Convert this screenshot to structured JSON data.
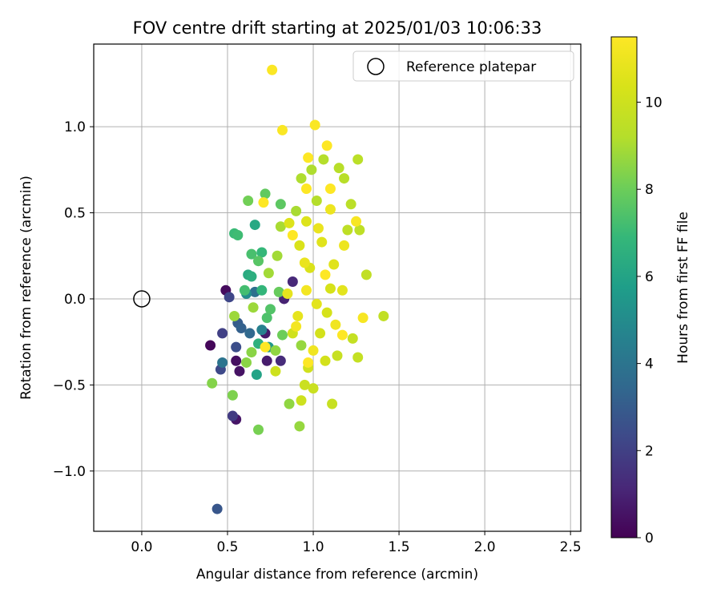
{
  "chart_data": {
    "type": "scatter",
    "title": "FOV centre drift starting at 2025/01/03 10:06:33",
    "xlabel": "Angular distance from reference (arcmin)",
    "ylabel": "Rotation from reference (arcmin)",
    "xlim": [
      -0.28,
      2.56
    ],
    "ylim": [
      -1.35,
      1.48
    ],
    "xticks": [
      0.0,
      0.5,
      1.0,
      1.5,
      2.0,
      2.5
    ],
    "xtick_labels": [
      "0.0",
      "0.5",
      "1.0",
      "1.5",
      "2.0",
      "2.5"
    ],
    "yticks": [
      -1.0,
      -0.5,
      0.0,
      0.5,
      1.0
    ],
    "ytick_labels": [
      "−1.0",
      "−0.5",
      "0.0",
      "0.5",
      "1.0"
    ],
    "grid": true,
    "legend": {
      "position": "top-right",
      "entries": [
        "Reference platepar"
      ]
    },
    "reference_point": {
      "x": 0.0,
      "y": 0.0
    },
    "colorbar": {
      "label": "Hours from first FF file",
      "range": [
        0,
        11.5
      ],
      "ticks": [
        0,
        2,
        4,
        6,
        8,
        10
      ],
      "tick_labels": [
        "0",
        "2",
        "4",
        "6",
        "8",
        "10"
      ],
      "colormap": "viridis"
    },
    "series": [
      {
        "points": [
          {
            "x": 0.4,
            "y": -0.27,
            "h": 0.2
          },
          {
            "x": 0.49,
            "y": 0.05,
            "h": 0.3
          },
          {
            "x": 0.55,
            "y": -0.36,
            "h": 0.4
          },
          {
            "x": 0.57,
            "y": -0.42,
            "h": 0.5
          },
          {
            "x": 0.55,
            "y": -0.7,
            "h": 0.6
          },
          {
            "x": 0.72,
            "y": -0.2,
            "h": 0.7
          },
          {
            "x": 0.73,
            "y": -0.36,
            "h": 0.8
          },
          {
            "x": 0.83,
            "y": 0.0,
            "h": 1.0
          },
          {
            "x": 0.88,
            "y": 0.1,
            "h": 1.2
          },
          {
            "x": 0.81,
            "y": -0.36,
            "h": 1.3
          },
          {
            "x": 0.53,
            "y": -0.68,
            "h": 1.8
          },
          {
            "x": 0.47,
            "y": -0.2,
            "h": 2.0
          },
          {
            "x": 0.51,
            "y": 0.01,
            "h": 2.2
          },
          {
            "x": 0.46,
            "y": -0.41,
            "h": 2.3
          },
          {
            "x": 0.55,
            "y": -0.28,
            "h": 2.5
          },
          {
            "x": 0.44,
            "y": -1.22,
            "h": 2.8
          },
          {
            "x": 0.56,
            "y": -0.14,
            "h": 3.0
          },
          {
            "x": 0.58,
            "y": -0.17,
            "h": 3.2
          },
          {
            "x": 0.63,
            "y": -0.2,
            "h": 3.5
          },
          {
            "x": 0.66,
            "y": 0.04,
            "h": 3.8
          },
          {
            "x": 0.47,
            "y": -0.37,
            "h": 4.0
          },
          {
            "x": 0.7,
            "y": -0.18,
            "h": 4.5
          },
          {
            "x": 0.61,
            "y": 0.03,
            "h": 5.0
          },
          {
            "x": 0.74,
            "y": -0.28,
            "h": 5.5
          },
          {
            "x": 0.67,
            "y": -0.44,
            "h": 6.0
          },
          {
            "x": 0.66,
            "y": 0.43,
            "h": 6.2
          },
          {
            "x": 0.62,
            "y": 0.14,
            "h": 6.3
          },
          {
            "x": 0.64,
            "y": 0.13,
            "h": 6.5
          },
          {
            "x": 0.68,
            "y": -0.26,
            "h": 6.6
          },
          {
            "x": 0.7,
            "y": 0.05,
            "h": 6.8
          },
          {
            "x": 0.7,
            "y": 0.27,
            "h": 6.9
          },
          {
            "x": 0.54,
            "y": 0.38,
            "h": 7.0
          },
          {
            "x": 0.56,
            "y": 0.37,
            "h": 7.1
          },
          {
            "x": 0.6,
            "y": 0.05,
            "h": 7.2
          },
          {
            "x": 0.64,
            "y": 0.26,
            "h": 7.3
          },
          {
            "x": 0.73,
            "y": -0.11,
            "h": 7.4
          },
          {
            "x": 0.75,
            "y": -0.06,
            "h": 7.5
          },
          {
            "x": 0.68,
            "y": 0.22,
            "h": 7.6
          },
          {
            "x": 0.81,
            "y": 0.55,
            "h": 7.7
          },
          {
            "x": 0.72,
            "y": 0.61,
            "h": 7.8
          },
          {
            "x": 0.8,
            "y": 0.04,
            "h": 7.9
          },
          {
            "x": 0.82,
            "y": -0.21,
            "h": 8.0
          },
          {
            "x": 0.62,
            "y": 0.57,
            "h": 8.1
          },
          {
            "x": 0.68,
            "y": -0.76,
            "h": 8.2
          },
          {
            "x": 0.53,
            "y": -0.56,
            "h": 8.3
          },
          {
            "x": 0.41,
            "y": -0.49,
            "h": 8.4
          },
          {
            "x": 0.61,
            "y": -0.37,
            "h": 8.5
          },
          {
            "x": 0.64,
            "y": -0.31,
            "h": 8.5
          },
          {
            "x": 0.78,
            "y": -0.3,
            "h": 8.6
          },
          {
            "x": 0.86,
            "y": -0.61,
            "h": 8.6
          },
          {
            "x": 0.92,
            "y": -0.74,
            "h": 8.7
          },
          {
            "x": 0.93,
            "y": -0.27,
            "h": 8.7
          },
          {
            "x": 0.54,
            "y": -0.1,
            "h": 8.8
          },
          {
            "x": 0.65,
            "y": -0.05,
            "h": 8.8
          },
          {
            "x": 0.74,
            "y": 0.15,
            "h": 8.9
          },
          {
            "x": 0.79,
            "y": 0.25,
            "h": 8.9
          },
          {
            "x": 0.81,
            "y": 0.42,
            "h": 9.0
          },
          {
            "x": 0.9,
            "y": 0.51,
            "h": 9.0
          },
          {
            "x": 0.93,
            "y": 0.7,
            "h": 9.1
          },
          {
            "x": 0.99,
            "y": 0.75,
            "h": 9.1
          },
          {
            "x": 1.02,
            "y": 0.57,
            "h": 9.2
          },
          {
            "x": 1.06,
            "y": 0.81,
            "h": 9.2
          },
          {
            "x": 1.15,
            "y": 0.76,
            "h": 9.3
          },
          {
            "x": 1.18,
            "y": 0.7,
            "h": 9.3
          },
          {
            "x": 1.26,
            "y": 0.81,
            "h": 9.4
          },
          {
            "x": 1.22,
            "y": 0.55,
            "h": 9.4
          },
          {
            "x": 1.2,
            "y": 0.4,
            "h": 9.5
          },
          {
            "x": 1.27,
            "y": 0.4,
            "h": 9.5
          },
          {
            "x": 1.31,
            "y": 0.14,
            "h": 9.6
          },
          {
            "x": 1.41,
            "y": -0.1,
            "h": 9.6
          },
          {
            "x": 1.23,
            "y": -0.23,
            "h": 9.7
          },
          {
            "x": 1.26,
            "y": -0.34,
            "h": 9.7
          },
          {
            "x": 1.14,
            "y": -0.33,
            "h": 9.8
          },
          {
            "x": 1.11,
            "y": -0.61,
            "h": 9.8
          },
          {
            "x": 1.0,
            "y": -0.52,
            "h": 9.9
          },
          {
            "x": 0.95,
            "y": -0.5,
            "h": 9.9
          },
          {
            "x": 0.93,
            "y": -0.59,
            "h": 10.0
          },
          {
            "x": 0.78,
            "y": -0.42,
            "h": 10.0
          },
          {
            "x": 0.88,
            "y": -0.2,
            "h": 10.1
          },
          {
            "x": 0.97,
            "y": -0.4,
            "h": 10.1
          },
          {
            "x": 1.07,
            "y": -0.36,
            "h": 10.2
          },
          {
            "x": 1.04,
            "y": -0.2,
            "h": 10.2
          },
          {
            "x": 1.08,
            "y": -0.08,
            "h": 10.3
          },
          {
            "x": 1.1,
            "y": 0.06,
            "h": 10.3
          },
          {
            "x": 0.98,
            "y": 0.18,
            "h": 10.4
          },
          {
            "x": 0.92,
            "y": 0.31,
            "h": 10.4
          },
          {
            "x": 0.86,
            "y": 0.44,
            "h": 10.5
          },
          {
            "x": 0.96,
            "y": 0.45,
            "h": 10.5
          },
          {
            "x": 1.05,
            "y": 0.33,
            "h": 10.6
          },
          {
            "x": 1.12,
            "y": 0.2,
            "h": 10.6
          },
          {
            "x": 1.17,
            "y": 0.05,
            "h": 10.7
          },
          {
            "x": 1.02,
            "y": -0.03,
            "h": 10.7
          },
          {
            "x": 0.91,
            "y": -0.1,
            "h": 10.8
          },
          {
            "x": 0.85,
            "y": 0.03,
            "h": 10.8
          },
          {
            "x": 0.95,
            "y": 0.21,
            "h": 10.9
          },
          {
            "x": 1.03,
            "y": 0.41,
            "h": 10.9
          },
          {
            "x": 1.1,
            "y": 0.52,
            "h": 11.0
          },
          {
            "x": 1.18,
            "y": 0.31,
            "h": 11.0
          },
          {
            "x": 1.13,
            "y": -0.15,
            "h": 11.1
          },
          {
            "x": 1.0,
            "y": -0.3,
            "h": 11.1
          },
          {
            "x": 0.9,
            "y": -0.16,
            "h": 11.2
          },
          {
            "x": 0.96,
            "y": 0.05,
            "h": 11.2
          },
          {
            "x": 1.25,
            "y": 0.45,
            "h": 11.3
          },
          {
            "x": 1.29,
            "y": -0.11,
            "h": 11.3
          },
          {
            "x": 0.82,
            "y": 0.98,
            "h": 11.4
          },
          {
            "x": 1.01,
            "y": 1.01,
            "h": 11.4
          },
          {
            "x": 0.76,
            "y": 1.33,
            "h": 11.45
          },
          {
            "x": 0.97,
            "y": 0.82,
            "h": 11.5
          },
          {
            "x": 1.08,
            "y": 0.89,
            "h": 11.5
          },
          {
            "x": 0.71,
            "y": 0.56,
            "h": 11.5
          },
          {
            "x": 0.96,
            "y": 0.64,
            "h": 11.5
          },
          {
            "x": 1.1,
            "y": 0.64,
            "h": 11.5
          },
          {
            "x": 0.88,
            "y": 0.37,
            "h": 11.5
          },
          {
            "x": 1.07,
            "y": 0.14,
            "h": 11.5
          },
          {
            "x": 0.97,
            "y": -0.37,
            "h": 11.5
          },
          {
            "x": 1.17,
            "y": -0.21,
            "h": 11.5
          },
          {
            "x": 0.72,
            "y": -0.28,
            "h": 11.5
          }
        ]
      }
    ]
  }
}
